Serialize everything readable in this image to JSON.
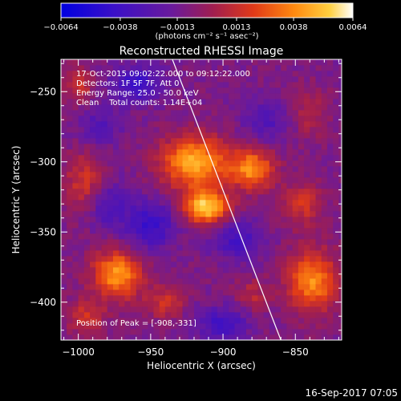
{
  "chart_data": {
    "type": "heatmap",
    "title": "Reconstructed RHESSI Image",
    "xlabel": "Heliocentric X (arcsec)",
    "ylabel": "Heliocentric Y (arcsec)",
    "xlim": [
      -1012,
      -818
    ],
    "ylim": [
      -427,
      -227
    ],
    "x_ticks": [
      -1000,
      -950,
      -900,
      -850
    ],
    "x_tick_labels": [
      "−1000",
      "−950",
      "−900",
      "−850"
    ],
    "y_ticks": [
      -250,
      -300,
      -350,
      -400
    ],
    "y_tick_labels": [
      "−250",
      "−300",
      "−350",
      "−400"
    ],
    "colorbar": {
      "min": -0.0064,
      "max": 0.0064,
      "ticks": [
        -0.0064,
        -0.0038,
        -0.0013,
        0.0013,
        0.0038,
        0.0064
      ],
      "tick_labels": [
        "−0.0064",
        "−0.0038",
        "−0.0013",
        "0.0013",
        "0.0038",
        "0.0064"
      ],
      "unit_label": "(photons cm⁻² s⁻¹ asec⁻²)",
      "colors": [
        "#0000e0",
        "#5a0fb4",
        "#6a1a8c",
        "#9b1e4a",
        "#e0301a",
        "#ff7a10",
        "#ffd040",
        "#ffffff"
      ]
    },
    "annotations": {
      "time_range": "17-Oct-2015 09:02:22.000 to 09:12:22.000",
      "detectors": "Detectors: 1F 5F 7F, Att 0",
      "energy": "Energy Range: 25.0 - 50.0 keV",
      "clean": "Clean    Total counts: 1.14E+04",
      "peak": "Position of Peak = [-908,-331]"
    },
    "peak": [
      -908,
      -331
    ],
    "limb_line": [
      [
        -935,
        -227
      ],
      [
        -860,
        -427
      ]
    ],
    "sources": [
      {
        "x": -920,
        "y": -300,
        "amp": 0.0055,
        "sx": 16,
        "sy": 13
      },
      {
        "x": -912,
        "y": -332,
        "amp": 0.0064,
        "sx": 11,
        "sy": 8
      },
      {
        "x": -880,
        "y": -305,
        "amp": 0.0046,
        "sx": 11,
        "sy": 10
      },
      {
        "x": -973,
        "y": -380,
        "amp": 0.005,
        "sx": 12,
        "sy": 12
      },
      {
        "x": -838,
        "y": -385,
        "amp": 0.0048,
        "sx": 12,
        "sy": 15
      },
      {
        "x": -995,
        "y": -315,
        "amp": 0.0026,
        "sx": 10,
        "sy": 15
      },
      {
        "x": -845,
        "y": -330,
        "amp": 0.0024,
        "sx": 10,
        "sy": 11
      },
      {
        "x": -940,
        "y": -400,
        "amp": 0.0024,
        "sx": 9,
        "sy": 8
      },
      {
        "x": -995,
        "y": -410,
        "amp": 0.0024,
        "sx": 9,
        "sy": 9
      },
      {
        "x": -880,
        "y": -395,
        "amp": 0.0018,
        "sx": 8,
        "sy": 8
      },
      {
        "x": -1000,
        "y": -245,
        "amp": 0.0022,
        "sx": 8,
        "sy": 9
      },
      {
        "x": -840,
        "y": -265,
        "amp": 0.0016,
        "sx": 9,
        "sy": 12
      },
      {
        "x": -960,
        "y": -245,
        "amp": -0.0032,
        "sx": 12,
        "sy": 9
      },
      {
        "x": -950,
        "y": -345,
        "amp": -0.0032,
        "sx": 12,
        "sy": 12
      },
      {
        "x": -890,
        "y": -355,
        "amp": -0.0026,
        "sx": 12,
        "sy": 10
      },
      {
        "x": -980,
        "y": -330,
        "amp": -0.0024,
        "sx": 10,
        "sy": 12
      },
      {
        "x": -870,
        "y": -270,
        "amp": -0.002,
        "sx": 11,
        "sy": 10
      },
      {
        "x": -900,
        "y": -415,
        "amp": -0.0028,
        "sx": 12,
        "sy": 8
      },
      {
        "x": -985,
        "y": -275,
        "amp": -0.0018,
        "sx": 10,
        "sy": 10
      }
    ]
  },
  "footer": {
    "timestamp": "16-Sep-2017 07:05"
  }
}
